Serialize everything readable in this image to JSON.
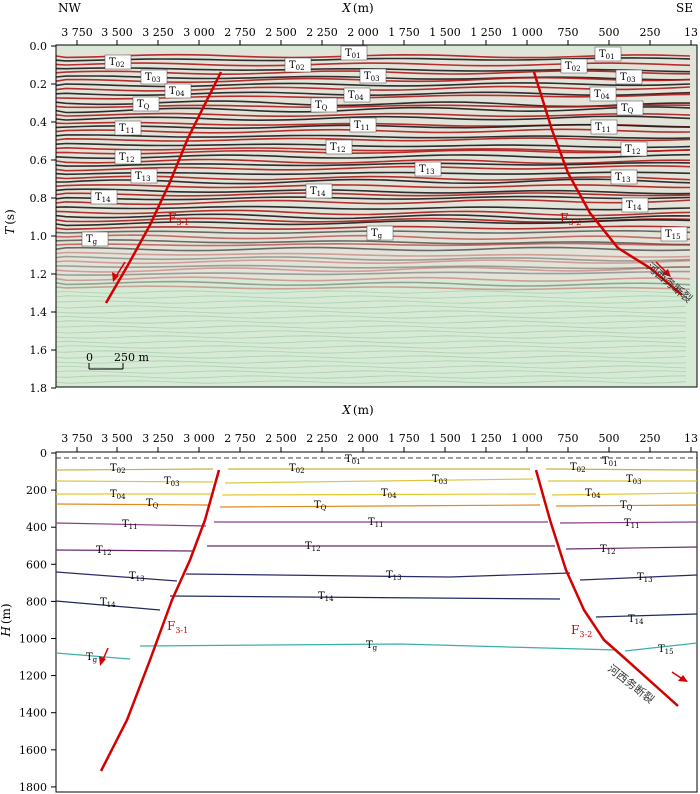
{
  "top_panel": {
    "left_direction": "NW",
    "right_direction": "SE",
    "x_axis_title": "X",
    "x_axis_unit": "(m)",
    "y_axis_title": "T",
    "y_axis_unit": "(s)",
    "x_tick_labels": [
      "3 750",
      "3 500",
      "3 250",
      "3 000",
      "2 750",
      "2 500",
      "2 250",
      "2 000",
      "1 750",
      "1 500",
      "1 250",
      "1 000",
      "750",
      "500",
      "250",
      "13"
    ],
    "y_tick_labels": [
      "0.0",
      "0.2",
      "0.4",
      "0.6",
      "0.8",
      "1.0",
      "1.2",
      "1.4",
      "1.6",
      "1.8"
    ],
    "scale_bar_start": "0",
    "scale_bar_end": "250 m",
    "fault_label_base": "F",
    "fault_left_sub": "3-1",
    "fault_right_sub": "3-2",
    "fault_name": "河西务断裂",
    "horizon_base": "T",
    "horizon_labels": [
      {
        "sub": "01"
      },
      {
        "sub": "01"
      },
      {
        "sub": "02"
      },
      {
        "sub": "02"
      },
      {
        "sub": "02"
      },
      {
        "sub": "03"
      },
      {
        "sub": "03"
      },
      {
        "sub": "03"
      },
      {
        "sub": "04"
      },
      {
        "sub": "04"
      },
      {
        "sub": "04"
      },
      {
        "sub": "Q"
      },
      {
        "sub": "Q"
      },
      {
        "sub": "Q"
      },
      {
        "sub": "11"
      },
      {
        "sub": "11"
      },
      {
        "sub": "11"
      },
      {
        "sub": "12"
      },
      {
        "sub": "12"
      },
      {
        "sub": "12"
      },
      {
        "sub": "13"
      },
      {
        "sub": "13"
      },
      {
        "sub": "13"
      },
      {
        "sub": "14"
      },
      {
        "sub": "14"
      },
      {
        "sub": "14"
      },
      {
        "sub": "g"
      },
      {
        "sub": "g"
      },
      {
        "sub": "15"
      }
    ]
  },
  "bottom_panel": {
    "x_axis_title": "X",
    "x_axis_unit": "(m)",
    "y_axis_title": "H",
    "y_axis_unit": "(m)",
    "x_tick_labels": [
      "3 750",
      "3 500",
      "3 250",
      "3 000",
      "2 750",
      "2 500",
      "2 250",
      "2 000",
      "1 750",
      "1 500",
      "1 250",
      "1 000",
      "750",
      "500",
      "250",
      "13"
    ],
    "y_tick_labels": [
      "0",
      "200",
      "400",
      "600",
      "800",
      "1000",
      "1200",
      "1400",
      "1600",
      "1800"
    ],
    "fault_label_base": "F",
    "fault_left_sub": "3-1",
    "fault_right_sub": "3-2",
    "fault_name": "河西务断裂",
    "horizon_base": "T",
    "horizon_labels": [
      {
        "sub": "01"
      },
      {
        "sub": "01"
      },
      {
        "sub": "02"
      },
      {
        "sub": "02"
      },
      {
        "sub": "02"
      },
      {
        "sub": "03"
      },
      {
        "sub": "03"
      },
      {
        "sub": "03"
      },
      {
        "sub": "04"
      },
      {
        "sub": "04"
      },
      {
        "sub": "04"
      },
      {
        "sub": "Q"
      },
      {
        "sub": "Q"
      },
      {
        "sub": "Q"
      },
      {
        "sub": "11"
      },
      {
        "sub": "11"
      },
      {
        "sub": "11"
      },
      {
        "sub": "12"
      },
      {
        "sub": "12"
      },
      {
        "sub": "12"
      },
      {
        "sub": "13"
      },
      {
        "sub": "13"
      },
      {
        "sub": "13"
      },
      {
        "sub": "14"
      },
      {
        "sub": "14"
      },
      {
        "sub": "14"
      },
      {
        "sub": "g"
      },
      {
        "sub": "g"
      },
      {
        "sub": "15"
      }
    ],
    "horizon_colors": {
      "T01": "#222222",
      "T02": "#c9b23a",
      "T03": "#d9c640",
      "T04": "#e8c830",
      "TQ": "#e08a1e",
      "T11": "#8a3a8a",
      "T12": "#6a2a6a",
      "T13": "#2a2a6a",
      "T14": "#1e2a5a",
      "Tg": "#3ab0a8",
      "T15": "#3ab0a8"
    }
  },
  "colors": {
    "fault": "#d40000",
    "seismic_red": "#b01a1a",
    "seismic_black": "#1a1a1a",
    "seismic_bg": "#cfe6d0"
  }
}
